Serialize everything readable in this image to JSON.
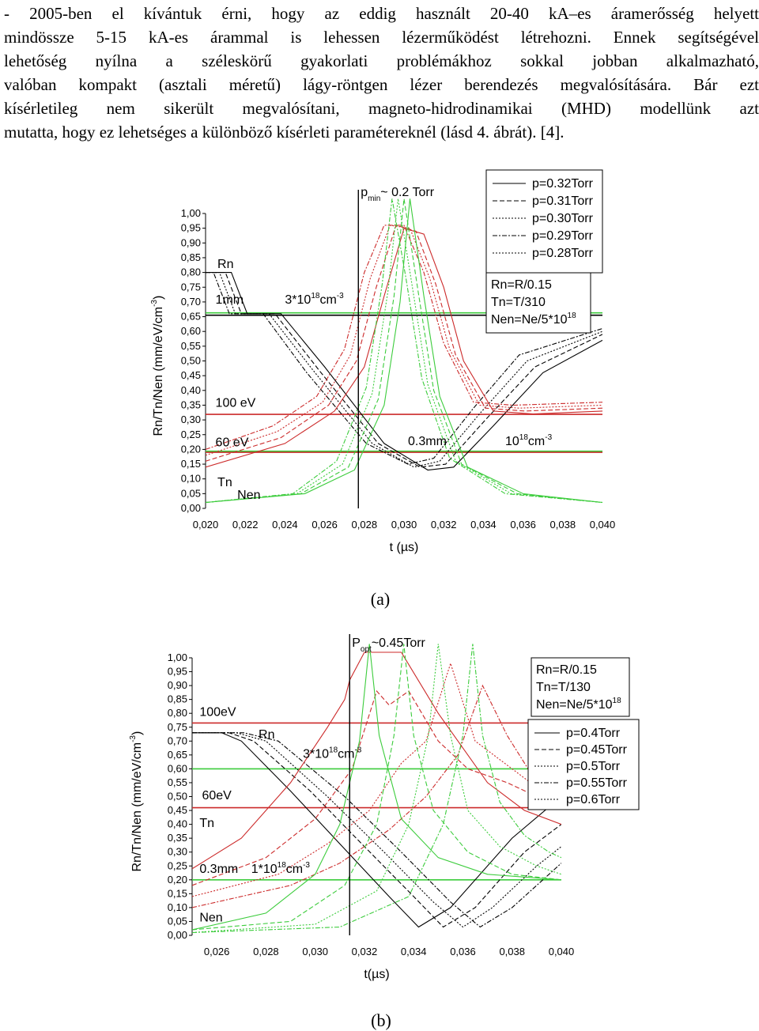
{
  "paragraph": {
    "lines": [
      "- 2005-ben el kívántuk érni, hogy az eddig használt 20-40 kA–es áramerősség helyett",
      "mindössze 5-15 kA-es árammal is lehessen lézerműködést létrehozni. Ennek segítségével",
      "lehetőség nyílna a széleskörű gyakorlati problémákhoz sokkal jobban alkalmazható,",
      "valóban kompakt (asztali méretű) lágy-röntgen lézer berendezés megvalósítására. Bár ezt",
      "kísérletileg nem sikerült megvalósítani, magneto-hidrodinamikai (MHD) modellünk azt",
      "mutatta, hogy ez lehetséges a különböző kísérleti paramétereknél (lásd 4. ábrát). [4]."
    ]
  },
  "colors": {
    "black": "#000000",
    "red": "#cc2a2a",
    "green": "#3ccc3c"
  },
  "chart_data": [
    {
      "type": "line",
      "caption": "(a)",
      "xlabel": "t (µs)",
      "ylabel": "Rn/Tn/Nen (mm/eV/cm-3)",
      "ylabel_main": "Rn/Tn/Nen (mm/eV/cm",
      "ylabel_sup": "-3",
      "ylabel_end": ")",
      "xlim": [
        0.02,
        0.04
      ],
      "ylim": [
        0.0,
        1.0
      ],
      "xticks": [
        "0,020",
        "0,022",
        "0,024",
        "0,026",
        "0,028",
        "0,030",
        "0,032",
        "0,034",
        "0,036",
        "0,038",
        "0,040"
      ],
      "yticks": [
        "0,00",
        "0,05",
        "0,10",
        "0,15",
        "0,20",
        "0,25",
        "0,30",
        "0,35",
        "0,40",
        "0,45",
        "0,50",
        "0,55",
        "0,60",
        "0,65",
        "0,70",
        "0,75",
        "0,80",
        "0,85",
        "0,90",
        "0,95",
        "1,00"
      ],
      "vline": {
        "x": 0.0277,
        "label": "p",
        "label_sub": "min",
        "label_rest": "~ 0.2 Torr"
      },
      "hlines": [
        {
          "y": 0.663,
          "color": "green"
        },
        {
          "y": 0.655,
          "color": "black"
        },
        {
          "y": 0.319,
          "color": "red"
        },
        {
          "y": 0.194,
          "color": "green"
        },
        {
          "y": 0.19,
          "color": "red"
        }
      ],
      "annotations": [
        {
          "text": "Rn",
          "x": 0.0206,
          "y": 0.815
        },
        {
          "text": "1mm",
          "x": 0.0205,
          "y": 0.695
        },
        {
          "text": "3*10",
          "sup": "18",
          "rest": "cm",
          "sup2": "-3",
          "x": 0.024,
          "y": 0.695
        },
        {
          "text": "100 eV",
          "x": 0.0205,
          "y": 0.345
        },
        {
          "text": "60 eV",
          "x": 0.0205,
          "y": 0.21
        },
        {
          "text": "0.3mm",
          "x": 0.0302,
          "y": 0.215
        },
        {
          "text": "10",
          "sup": "18",
          "rest": "cm",
          "sup2": "-3",
          "x": 0.0351,
          "y": 0.215
        },
        {
          "text": "Tn",
          "x": 0.0206,
          "y": 0.075
        },
        {
          "text": "Nen",
          "x": 0.0216,
          "y": 0.032
        }
      ],
      "legend": [
        "p=0.32Torr",
        "p=0.31Torr",
        "p=0.30Torr",
        "p=0.29Torr",
        "p=0.28Torr"
      ],
      "params": [
        "Rn=R/0.15",
        "Tn=T/310",
        "Nen=Ne/5*10"
      ],
      "params_sup": "18",
      "series": [
        {
          "quantity": "Rn",
          "color": "black",
          "dash": "solid",
          "x": [
            0.02,
            0.0213,
            0.0221,
            0.0238,
            0.026,
            0.029,
            0.0312,
            0.0325,
            0.0345,
            0.037,
            0.04
          ],
          "y": [
            0.8,
            0.8,
            0.66,
            0.66,
            0.48,
            0.22,
            0.13,
            0.14,
            0.28,
            0.46,
            0.57
          ]
        },
        {
          "quantity": "Rn",
          "color": "black",
          "dash": "dash",
          "x": [
            0.02,
            0.021,
            0.0218,
            0.0235,
            0.0257,
            0.0287,
            0.0308,
            0.0321,
            0.0341,
            0.0366,
            0.04
          ],
          "y": [
            0.8,
            0.8,
            0.66,
            0.66,
            0.47,
            0.22,
            0.14,
            0.15,
            0.3,
            0.48,
            0.59
          ]
        },
        {
          "quantity": "Rn",
          "color": "black",
          "dash": "dot",
          "x": [
            0.02,
            0.0207,
            0.0215,
            0.0232,
            0.0254,
            0.0284,
            0.0305,
            0.0318,
            0.0338,
            0.0362,
            0.04
          ],
          "y": [
            0.8,
            0.8,
            0.66,
            0.66,
            0.47,
            0.22,
            0.14,
            0.16,
            0.32,
            0.5,
            0.6
          ]
        },
        {
          "quantity": "Rn",
          "color": "black",
          "dash": "dashdot",
          "x": [
            0.02,
            0.0204,
            0.0212,
            0.0229,
            0.0251,
            0.0281,
            0.0302,
            0.0315,
            0.0335,
            0.0358,
            0.04
          ],
          "y": [
            0.8,
            0.8,
            0.66,
            0.66,
            0.46,
            0.22,
            0.15,
            0.17,
            0.34,
            0.52,
            0.61
          ]
        },
        {
          "quantity": "Tn",
          "color": "red",
          "dash": "solid",
          "x": [
            0.02,
            0.024,
            0.0265,
            0.028,
            0.029,
            0.03,
            0.031,
            0.032,
            0.033,
            0.0345,
            0.0365,
            0.04
          ],
          "y": [
            0.14,
            0.22,
            0.33,
            0.48,
            0.72,
            0.95,
            0.93,
            0.75,
            0.5,
            0.33,
            0.32,
            0.33
          ]
        },
        {
          "quantity": "Tn",
          "color": "red",
          "dash": "dash",
          "x": [
            0.02,
            0.0238,
            0.0262,
            0.0276,
            0.0286,
            0.0296,
            0.0306,
            0.0316,
            0.0326,
            0.0341,
            0.0361,
            0.04
          ],
          "y": [
            0.16,
            0.24,
            0.35,
            0.5,
            0.75,
            0.96,
            0.94,
            0.76,
            0.52,
            0.34,
            0.33,
            0.34
          ]
        },
        {
          "quantity": "Tn",
          "color": "red",
          "dash": "dot",
          "x": [
            0.02,
            0.0236,
            0.0259,
            0.0273,
            0.0283,
            0.0293,
            0.0303,
            0.0313,
            0.0323,
            0.0338,
            0.0358,
            0.04
          ],
          "y": [
            0.18,
            0.26,
            0.36,
            0.52,
            0.78,
            0.96,
            0.95,
            0.78,
            0.54,
            0.35,
            0.34,
            0.35
          ]
        },
        {
          "quantity": "Tn",
          "color": "red",
          "dash": "dashdot",
          "x": [
            0.02,
            0.0234,
            0.0256,
            0.027,
            0.028,
            0.029,
            0.03,
            0.031,
            0.032,
            0.0335,
            0.0355,
            0.04
          ],
          "y": [
            0.2,
            0.28,
            0.38,
            0.54,
            0.8,
            0.96,
            0.96,
            0.8,
            0.56,
            0.36,
            0.35,
            0.36
          ]
        },
        {
          "quantity": "Nen",
          "color": "green",
          "dash": "solid",
          "x": [
            0.02,
            0.025,
            0.0275,
            0.029,
            0.0298,
            0.0303,
            0.031,
            0.0318,
            0.0332,
            0.036,
            0.04
          ],
          "y": [
            0.02,
            0.05,
            0.13,
            0.35,
            0.7,
            1.05,
            0.72,
            0.38,
            0.14,
            0.05,
            0.02
          ]
        },
        {
          "quantity": "Nen",
          "color": "green",
          "dash": "dash",
          "x": [
            0.02,
            0.0248,
            0.0272,
            0.0287,
            0.0295,
            0.03,
            0.0307,
            0.0315,
            0.0329,
            0.0357,
            0.04
          ],
          "y": [
            0.02,
            0.05,
            0.14,
            0.37,
            0.72,
            1.05,
            0.74,
            0.4,
            0.15,
            0.05,
            0.02
          ]
        },
        {
          "quantity": "Nen",
          "color": "green",
          "dash": "dot",
          "x": [
            0.02,
            0.0246,
            0.0269,
            0.0284,
            0.0292,
            0.0297,
            0.0304,
            0.0312,
            0.0326,
            0.0354,
            0.04
          ],
          "y": [
            0.02,
            0.05,
            0.15,
            0.39,
            0.74,
            1.05,
            0.76,
            0.42,
            0.16,
            0.05,
            0.02
          ]
        },
        {
          "quantity": "Nen",
          "color": "green",
          "dash": "dashdot",
          "x": [
            0.02,
            0.0244,
            0.0266,
            0.0281,
            0.0289,
            0.0294,
            0.0301,
            0.0309,
            0.0323,
            0.0351,
            0.04
          ],
          "y": [
            0.02,
            0.05,
            0.16,
            0.41,
            0.76,
            1.05,
            0.78,
            0.44,
            0.17,
            0.05,
            0.02
          ]
        }
      ]
    },
    {
      "type": "line",
      "caption": "(b)",
      "xlabel": "t(µs)",
      "ylabel": "Rn/Tn/Nen (mm/eV/cm-3)",
      "ylabel_main": "Rn/Tn/Nen (mm/eV/cm",
      "ylabel_sup": "-3",
      "ylabel_end": ")",
      "xlim": [
        0.025,
        0.04
      ],
      "ylim": [
        0.0,
        1.0
      ],
      "xticks": [
        "0,026",
        "0,028",
        "0,030",
        "0,032",
        "0,034",
        "0,036",
        "0,038",
        "0,040"
      ],
      "xtick_values": [
        0.026,
        0.028,
        0.03,
        0.032,
        0.034,
        0.036,
        0.038,
        0.04
      ],
      "yticks": [
        "0,00",
        "0,05",
        "0,10",
        "0,15",
        "0,20",
        "0,25",
        "0,30",
        "0,35",
        "0,40",
        "0,45",
        "0,50",
        "0,55",
        "0,60",
        "0,65",
        "0,70",
        "0,75",
        "0,80",
        "0,85",
        "0,90",
        "0,95",
        "1,00"
      ],
      "vline": {
        "x": 0.0314,
        "label": "P",
        "label_sub": "opt",
        "label_rest": "~0.45Torr"
      },
      "hlines": [
        {
          "y": 0.765,
          "color": "red"
        },
        {
          "y": 0.6,
          "color": "green"
        },
        {
          "y": 0.46,
          "color": "red"
        },
        {
          "y": 0.2,
          "color": "green"
        }
      ],
      "annotations": [
        {
          "text": "100eV",
          "x": 0.0253,
          "y": 0.79
        },
        {
          "text": "Rn",
          "x": 0.0277,
          "y": 0.71
        },
        {
          "text": "3*10",
          "sup": "18",
          "rest": "cm",
          "sup2": "-3",
          "x": 0.0295,
          "y": 0.64
        },
        {
          "text": "60eV",
          "x": 0.0254,
          "y": 0.49
        },
        {
          "text": "Tn",
          "x": 0.0253,
          "y": 0.39
        },
        {
          "text": "0.3mm",
          "x": 0.0253,
          "y": 0.225
        },
        {
          "text": "1*10",
          "sup": "18",
          "rest": "cm",
          "sup2": "-3",
          "x": 0.0274,
          "y": 0.225
        },
        {
          "text": "Nen",
          "x": 0.0253,
          "y": 0.05
        }
      ],
      "legend": [
        "p=0.4Torr",
        "p=0.45Torr",
        "p=0.5Torr",
        "p=0.55Torr",
        "p=0.6Torr"
      ],
      "params": [
        "Rn=R/0.15",
        "Tn=T/130",
        "Nen=Ne/5*10"
      ],
      "params_sup": "18",
      "series": [
        {
          "quantity": "Rn",
          "color": "black",
          "dash": "solid",
          "x": [
            0.025,
            0.0262,
            0.027,
            0.029,
            0.031,
            0.033,
            0.0342,
            0.0355,
            0.038,
            0.04
          ],
          "y": [
            0.73,
            0.73,
            0.7,
            0.52,
            0.33,
            0.14,
            0.03,
            0.1,
            0.35,
            0.5
          ]
        },
        {
          "quantity": "Rn",
          "color": "black",
          "dash": "dash",
          "x": [
            0.025,
            0.0265,
            0.0275,
            0.0298,
            0.032,
            0.034,
            0.0352,
            0.0365,
            0.0385,
            0.04
          ],
          "y": [
            0.73,
            0.73,
            0.7,
            0.52,
            0.32,
            0.14,
            0.03,
            0.1,
            0.3,
            0.4
          ]
        },
        {
          "quantity": "Rn",
          "color": "black",
          "dash": "dot",
          "x": [
            0.025,
            0.0268,
            0.028,
            0.0305,
            0.0328,
            0.0348,
            0.036,
            0.0372,
            0.039,
            0.04
          ],
          "y": [
            0.73,
            0.73,
            0.7,
            0.5,
            0.3,
            0.12,
            0.03,
            0.1,
            0.25,
            0.32
          ]
        },
        {
          "quantity": "Rn",
          "color": "black",
          "dash": "dashdot",
          "x": [
            0.025,
            0.0271,
            0.0285,
            0.0312,
            0.0335,
            0.0355,
            0.0367,
            0.038,
            0.0395,
            0.04
          ],
          "y": [
            0.73,
            0.73,
            0.7,
            0.5,
            0.3,
            0.12,
            0.03,
            0.1,
            0.22,
            0.26
          ]
        },
        {
          "quantity": "Tn",
          "color": "red",
          "dash": "solid",
          "x": [
            0.025,
            0.027,
            0.029,
            0.0305,
            0.0312,
            0.0314,
            0.032,
            0.0335,
            0.035,
            0.037,
            0.0385,
            0.04
          ],
          "y": [
            0.24,
            0.35,
            0.55,
            0.75,
            0.85,
            0.92,
            1.02,
            1.02,
            0.8,
            0.55,
            0.45,
            0.4
          ]
        },
        {
          "quantity": "Tn",
          "color": "red",
          "dash": "dash",
          "x": [
            0.025,
            0.028,
            0.03,
            0.0315,
            0.0325,
            0.033,
            0.0338,
            0.035,
            0.0362,
            0.0378,
            0.039,
            0.04
          ],
          "y": [
            0.18,
            0.28,
            0.42,
            0.6,
            0.88,
            0.83,
            0.88,
            0.7,
            0.6,
            0.55,
            0.5,
            0.48
          ]
        },
        {
          "quantity": "Tn",
          "color": "red",
          "dash": "dot",
          "x": [
            0.025,
            0.0285,
            0.0305,
            0.0322,
            0.0335,
            0.0345,
            0.0355,
            0.0365,
            0.038,
            0.0392,
            0.04
          ],
          "y": [
            0.14,
            0.22,
            0.33,
            0.45,
            0.62,
            0.7,
            0.98,
            0.7,
            0.6,
            0.52,
            0.5
          ]
        },
        {
          "quantity": "Tn",
          "color": "red",
          "dash": "dashdot",
          "x": [
            0.025,
            0.029,
            0.031,
            0.033,
            0.0345,
            0.0358,
            0.0368,
            0.0378,
            0.039,
            0.04
          ],
          "y": [
            0.1,
            0.18,
            0.26,
            0.38,
            0.5,
            0.65,
            0.9,
            0.72,
            0.55,
            0.5
          ]
        },
        {
          "quantity": "Nen",
          "color": "green",
          "dash": "solid",
          "x": [
            0.025,
            0.028,
            0.03,
            0.031,
            0.0318,
            0.0322,
            0.0326,
            0.0335,
            0.035,
            0.037,
            0.04
          ],
          "y": [
            0.02,
            0.08,
            0.22,
            0.4,
            0.7,
            1.05,
            0.72,
            0.42,
            0.28,
            0.22,
            0.2
          ]
        },
        {
          "quantity": "Nen",
          "color": "green",
          "dash": "dash",
          "x": [
            0.025,
            0.029,
            0.0312,
            0.0325,
            0.0332,
            0.0336,
            0.034,
            0.0348,
            0.0362,
            0.038,
            0.04
          ],
          "y": [
            0.02,
            0.05,
            0.18,
            0.4,
            0.72,
            1.05,
            0.72,
            0.45,
            0.3,
            0.22,
            0.2
          ]
        },
        {
          "quantity": "Nen",
          "color": "green",
          "dash": "dot",
          "x": [
            0.025,
            0.03,
            0.0325,
            0.0338,
            0.0346,
            0.035,
            0.0355,
            0.0362,
            0.0375,
            0.039,
            0.04
          ],
          "y": [
            0.01,
            0.04,
            0.16,
            0.4,
            0.72,
            1.05,
            0.72,
            0.45,
            0.32,
            0.25,
            0.22
          ]
        },
        {
          "quantity": "Nen",
          "color": "green",
          "dash": "dashdot",
          "x": [
            0.025,
            0.031,
            0.0338,
            0.0352,
            0.036,
            0.0364,
            0.0368,
            0.0375,
            0.0385,
            0.0395,
            0.04
          ],
          "y": [
            0.01,
            0.03,
            0.14,
            0.4,
            0.72,
            1.05,
            0.72,
            0.48,
            0.36,
            0.3,
            0.28
          ]
        }
      ]
    }
  ]
}
